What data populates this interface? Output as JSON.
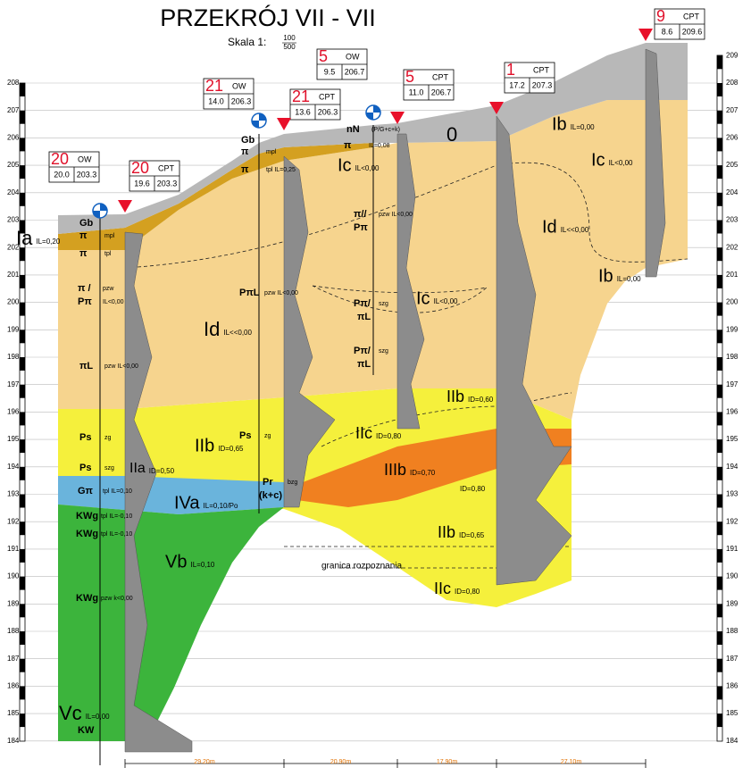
{
  "header": {
    "title": "PRZEKRÓJ  VII - VII",
    "scale_label": "Skala 1:",
    "scale_numerator": "100",
    "scale_denominator": "500"
  },
  "boreholes": [
    {
      "number": "20",
      "type": "OW",
      "distance": "20.0",
      "elevation": "203.3"
    },
    {
      "number": "20",
      "type": "CPT",
      "distance": "19.6",
      "elevation": "203.3"
    },
    {
      "number": "21",
      "type": "OW",
      "distance": "14.0",
      "elevation": "206.3"
    },
    {
      "number": "21",
      "type": "CPT",
      "distance": "13.6",
      "elevation": "206.3"
    },
    {
      "number": "5",
      "type": "OW",
      "distance": "9.5",
      "elevation": "206.7"
    },
    {
      "number": "5",
      "type": "CPT",
      "distance": "11.0",
      "elevation": "206.7"
    },
    {
      "number": "1",
      "type": "CPT",
      "distance": "17.2",
      "elevation": "207.3"
    },
    {
      "number": "9",
      "type": "CPT",
      "distance": "8.6",
      "elevation": "209.6"
    }
  ],
  "left_ticks": [
    184,
    185,
    186,
    187,
    188,
    189,
    190,
    191,
    192,
    193,
    194,
    195,
    196,
    197,
    198,
    199,
    200,
    201,
    202,
    203,
    204,
    205,
    206,
    207,
    208
  ],
  "right_ticks": [
    184,
    185,
    186,
    187,
    188,
    189,
    190,
    191,
    192,
    193,
    194,
    195,
    196,
    197,
    198,
    199,
    200,
    201,
    202,
    203,
    204,
    205,
    206,
    207,
    208,
    209
  ],
  "layers": [
    {
      "name": "Ia",
      "param": "IL=0,20"
    },
    {
      "name": "Id",
      "param": "IL<<0,00"
    },
    {
      "name": "IIb",
      "param": "ID=0,65"
    },
    {
      "name": "IIa",
      "param": "ID=0,50"
    },
    {
      "name": "IVa",
      "param": "IL=0,10/Po"
    },
    {
      "name": "Vb",
      "param": "IL=0,10"
    },
    {
      "name": "Vc",
      "param": "IL=0,00"
    },
    {
      "name": "0",
      "param": ""
    },
    {
      "name": "Ic",
      "param": "IL<0,00"
    },
    {
      "name": "Ib",
      "param": "IL=0,00"
    },
    {
      "name": "Ic",
      "param": "IL<0,00"
    },
    {
      "name": "Id",
      "param": "IL<<0,00"
    },
    {
      "name": "Ib",
      "param": "IL=0,00"
    },
    {
      "name": "Ic",
      "param": "IL<0,00"
    },
    {
      "name": "IIb",
      "param": "ID=0,60"
    },
    {
      "name": "IIc",
      "param": "ID=0,80"
    },
    {
      "name": "IIIb",
      "param": "ID=0,70"
    },
    {
      "name": "IIb",
      "param": "ID=0,65"
    },
    {
      "name": "IIc",
      "param": "ID=0,80"
    }
  ],
  "extra_params": [
    "ID=0,80"
  ],
  "soil_labels": [
    {
      "text": "Gb",
      "note": ""
    },
    {
      "text": "π",
      "note": "mpl"
    },
    {
      "text": "π",
      "note": "tpl"
    },
    {
      "text": "π /",
      "note": "pzw"
    },
    {
      "text": "Pπ",
      "note": "IL<0,00"
    },
    {
      "text": "πL",
      "note": "pzw IL<0,00"
    },
    {
      "text": "Ps",
      "note": "zg"
    },
    {
      "text": "Ps",
      "note": "szg"
    },
    {
      "text": "Gπ",
      "note": "tpl IL=0,10"
    },
    {
      "text": "KWg",
      "note": "tpl IL=-0,10"
    },
    {
      "text": "KWg",
      "note": "tpl IL=-0,10"
    },
    {
      "text": "KWg",
      "note": "pzw k<0,00"
    },
    {
      "text": "KW",
      "note": ""
    },
    {
      "text": "Gb",
      "note": ""
    },
    {
      "text": "π",
      "note": "mpl"
    },
    {
      "text": "π",
      "note": "tpl IL=0,25"
    },
    {
      "text": "PπL",
      "note": "pzw IL<0,00"
    },
    {
      "text": "Ps",
      "note": "zg"
    },
    {
      "text": "Pr",
      "note": "bzg"
    },
    {
      "text": "(k+c)",
      "note": ""
    },
    {
      "text": "nN",
      "note": "(P/G+c+k)"
    },
    {
      "text": "π",
      "note": "IL=0,08"
    },
    {
      "text": "π//",
      "note": "pzw IL<0,00"
    },
    {
      "text": "Pπ",
      "note": ""
    },
    {
      "text": "Pπ/",
      "note": "szg"
    },
    {
      "text": "πL",
      "note": ""
    },
    {
      "text": "Pπ/",
      "note": "szg"
    },
    {
      "text": "πL",
      "note": ""
    }
  ],
  "distances": [
    "29.20m",
    "20.90m",
    "17.90m",
    "27.10m"
  ],
  "annotation": "granica rozpoznania"
}
